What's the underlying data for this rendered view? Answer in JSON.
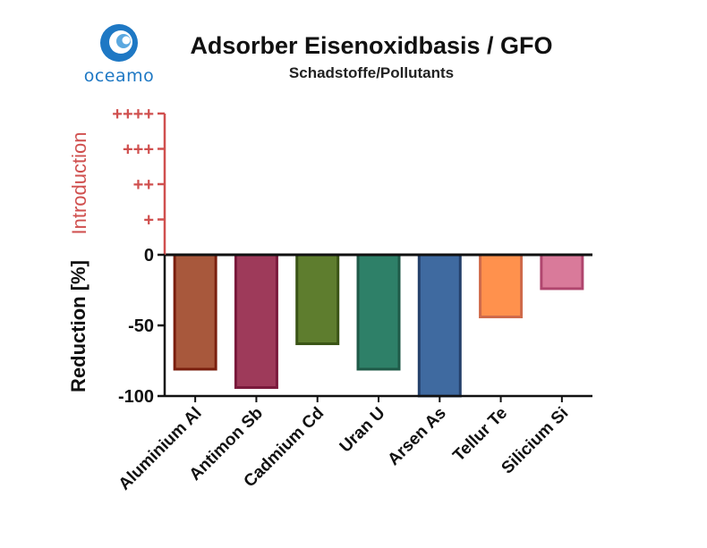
{
  "logo": {
    "text": "oceamo"
  },
  "chart_data": {
    "type": "bar",
    "title": "Adsorber Eisenoxidbasis / GFO",
    "subtitle": "Schadstoffe/Pollutants",
    "ylabel": "Reduction [%]",
    "ylabel_secondary": "Introduction",
    "categories": [
      "Aluminium Al",
      "Antimon Sb",
      "Cadmium Cd",
      "Uran U",
      "Arsen As",
      "Tellur Te",
      "Silicium Si"
    ],
    "values": [
      -81,
      -94,
      -63,
      -81,
      -100,
      -44,
      -24
    ],
    "colors": [
      "#a8583c",
      "#9e3a5a",
      "#5e7d2e",
      "#2e8068",
      "#3f6aa0",
      "#ff914d",
      "#d97a9a"
    ],
    "border_colors": [
      "#7a1f0e",
      "#7a1a3c",
      "#3a5416",
      "#1f5a48",
      "#24406a",
      "#cf6a4a",
      "#b0466e"
    ],
    "ylim": [
      -100,
      100
    ],
    "y_ticks": [
      0,
      -50,
      -100
    ],
    "y_tick_labels": [
      "0",
      "-50",
      "-100"
    ],
    "intro_ticks": [
      25,
      50,
      75,
      100
    ],
    "intro_tick_labels": [
      "+",
      "++",
      "+++",
      "++++"
    ],
    "intro_color": "#d0504f",
    "grid": false
  }
}
